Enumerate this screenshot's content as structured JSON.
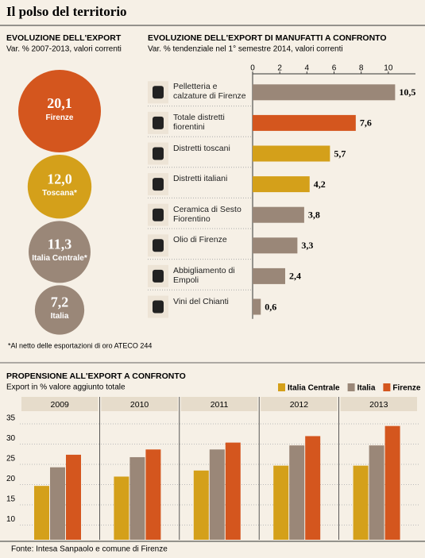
{
  "title": "Il polso del territorio",
  "source": "Fonte: Intesa Sanpaolo e comune di Firenze",
  "chart_data": [
    {
      "type": "bubble",
      "title": "EVOLUZIONE DELL'EXPORT",
      "subtitle": "Var. % 2007-2013, valori correnti",
      "note": "*Al netto delle esportazioni di oro ATECO 244",
      "categories": [
        "Firenze",
        "Toscana*",
        "Italia Centrale*",
        "Italia"
      ],
      "values": [
        20.1,
        12.0,
        11.3,
        7.2
      ],
      "value_labels": [
        "20,1",
        "12,0",
        "11,3",
        "7,2"
      ],
      "colors": [
        "#d4561e",
        "#d4a01a",
        "#9a8778",
        "#9a8778"
      ]
    },
    {
      "type": "bar",
      "orientation": "horizontal",
      "title": "EVOLUZIONE DELL'EXPORT DI MANUFATTI A CONFRONTO",
      "subtitle": "Var. % tendenziale nel 1° semestre 2014, valori correnti",
      "categories": [
        "Pelletteria e calzature di Firenze",
        "Totale distretti fiorentini",
        "Distretti toscani",
        "Distretti italiani",
        "Ceramica di Sesto Fiorentino",
        "Olio di Firenze",
        "Abbigliamento di Empoli",
        "Vini del Chianti"
      ],
      "values": [
        10.5,
        7.6,
        5.7,
        4.2,
        3.8,
        3.3,
        2.4,
        0.6
      ],
      "value_labels": [
        "10,5",
        "7,6",
        "5,7",
        "4,2",
        "3,8",
        "3,3",
        "2,4",
        "0,6"
      ],
      "colors": [
        "#9a8778",
        "#d4561e",
        "#d4a01a",
        "#d4a01a",
        "#9a8778",
        "#9a8778",
        "#9a8778",
        "#9a8778"
      ],
      "xlim": [
        0,
        12
      ],
      "xticks": [
        0,
        2,
        4,
        6,
        8,
        10
      ]
    },
    {
      "type": "grouped_bar",
      "title": "PROPENSIONE ALL'EXPORT A CONFRONTO",
      "subtitle": "Export in % valore aggiunto totale",
      "categories": [
        "2009",
        "2010",
        "2011",
        "2012",
        "2013"
      ],
      "series": [
        {
          "name": "Italia Centrale",
          "color": "#d4a01a",
          "values": [
            18.3,
            20.6,
            22.1,
            23.3,
            23.3
          ]
        },
        {
          "name": "Italia",
          "color": "#9a8778",
          "values": [
            22.9,
            25.4,
            27.3,
            28.3,
            28.3
          ]
        },
        {
          "name": "Firenze",
          "color": "#d4561e",
          "values": [
            26.0,
            27.3,
            29.0,
            30.6,
            33.1
          ]
        }
      ],
      "ylim": [
        5,
        35
      ],
      "yticks": [
        10,
        15,
        20,
        25,
        30,
        35
      ],
      "grid": true,
      "legend": "top-right"
    }
  ]
}
